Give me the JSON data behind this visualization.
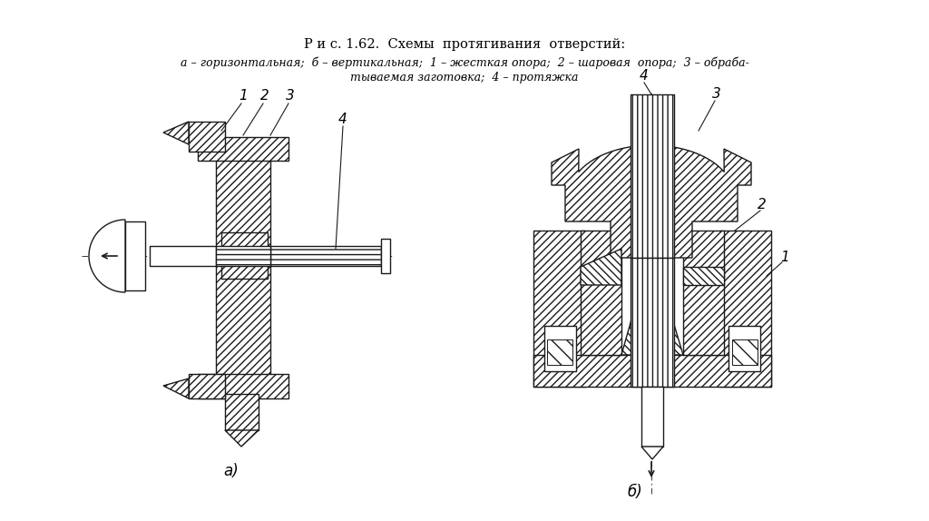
{
  "title": "Р и с. 1.62.  Схемы  протягивания  отверстий:",
  "caption_line1": "а – горизонтальная;  б – вертикальная;  1 – жесткая опора;  2 – шаровая  опора;  3 – обраба-",
  "caption_line2": "тываемая заготовка;  4 – протяжка",
  "label_a": "а)",
  "label_b": "б)",
  "bg_color": "#ffffff",
  "line_color": "#1a1a1a",
  "fig_width": 10.24,
  "fig_height": 5.74
}
